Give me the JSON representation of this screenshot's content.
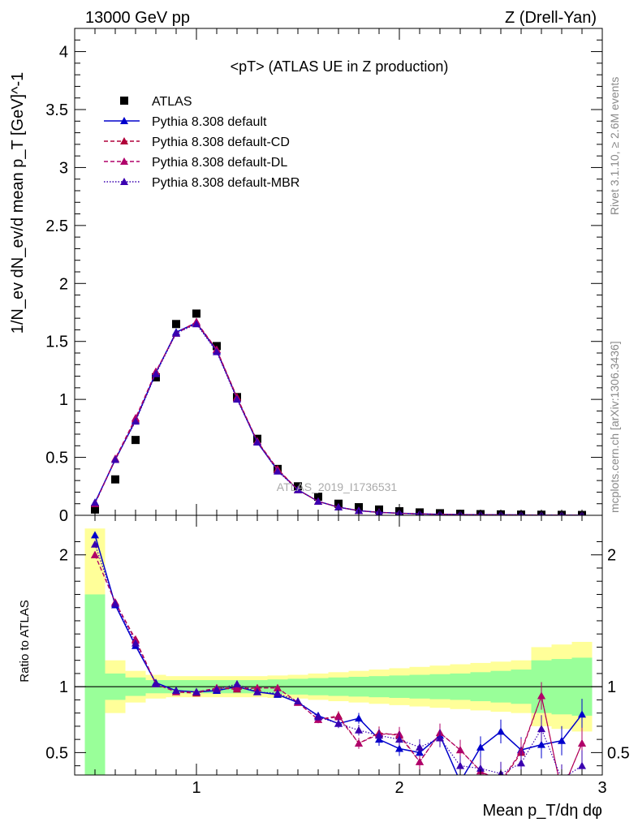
{
  "header": {
    "left": "13000 GeV pp",
    "right": "Z (Drell-Yan)"
  },
  "side_labels": {
    "rivet": "Rivet 3.1.10, ≥ 2.6M events",
    "mcplots": "mcplots.cern.ch [arXiv:1306.3436]"
  },
  "chart_data": [
    {
      "type": "line",
      "panel": "main",
      "title": "<pT> (ATLAS UE in Z production)",
      "watermark": "ATLAS_2019_I1736531",
      "ylabel": "1/N_ev dN_ev/d mean p_T [GeV]^-1",
      "xlim": [
        0.4,
        3.0
      ],
      "ylim": [
        0,
        4.2
      ],
      "grid": false,
      "legend_position": "top-left",
      "x": [
        0.5,
        0.6,
        0.7,
        0.8,
        0.9,
        1.0,
        1.1,
        1.2,
        1.3,
        1.4,
        1.5,
        1.6,
        1.7,
        1.8,
        1.9,
        2.0,
        2.1,
        2.2,
        2.3,
        2.4,
        2.5,
        2.6,
        2.7,
        2.8,
        2.9
      ],
      "yticks": [
        "0",
        "0.5",
        "1",
        "1.5",
        "2",
        "2.5",
        "3",
        "3.5",
        "4"
      ],
      "series": [
        {
          "name": "ATLAS",
          "color": "#000000",
          "marker": "square",
          "line": "none",
          "values": [
            0.05,
            0.31,
            0.65,
            1.19,
            1.65,
            1.74,
            1.46,
            1.02,
            0.66,
            0.4,
            0.25,
            0.16,
            0.1,
            0.07,
            0.05,
            0.035,
            0.025,
            0.018,
            0.013,
            0.01,
            0.008,
            0.006,
            0.005,
            0.004,
            0.003
          ]
        },
        {
          "name": "Pythia 8.308 default",
          "color": "#0000cc",
          "marker": "triangle",
          "line": "solid",
          "values": [
            0.11,
            0.48,
            0.82,
            1.23,
            1.58,
            1.66,
            1.42,
            1.01,
            0.63,
            0.39,
            0.22,
            0.12,
            0.07,
            0.04,
            0.025,
            0.018,
            0.012,
            0.009,
            0.006,
            0.005,
            0.004,
            0.003,
            0.002,
            0.002,
            0.001
          ]
        },
        {
          "name": "Pythia 8.308 default-CD",
          "color": "#b0003a",
          "marker": "triangle",
          "line": "dashed",
          "values": [
            0.1,
            0.48,
            0.83,
            1.24,
            1.57,
            1.66,
            1.43,
            1.02,
            0.64,
            0.4,
            0.22,
            0.12,
            0.07,
            0.04,
            0.026,
            0.018,
            0.012,
            0.009,
            0.006,
            0.005,
            0.004,
            0.003,
            0.002,
            0.002,
            0.001
          ]
        },
        {
          "name": "Pythia 8.308 default-DL",
          "color": "#b0006a",
          "marker": "triangle",
          "line": "dashed",
          "values": [
            0.1,
            0.49,
            0.84,
            1.24,
            1.57,
            1.67,
            1.43,
            1.01,
            0.64,
            0.39,
            0.22,
            0.12,
            0.07,
            0.04,
            0.025,
            0.018,
            0.012,
            0.009,
            0.006,
            0.005,
            0.004,
            0.003,
            0.002,
            0.002,
            0.001
          ]
        },
        {
          "name": "Pythia 8.308 default-MBR",
          "color": "#3a00b0",
          "marker": "triangle",
          "line": "dotted",
          "values": [
            0.11,
            0.48,
            0.81,
            1.22,
            1.57,
            1.65,
            1.41,
            1.0,
            0.63,
            0.38,
            0.22,
            0.12,
            0.07,
            0.04,
            0.025,
            0.018,
            0.012,
            0.009,
            0.006,
            0.005,
            0.004,
            0.003,
            0.002,
            0.002,
            0.001
          ]
        }
      ]
    },
    {
      "type": "line",
      "panel": "ratio",
      "ylabel": "Ratio to ATLAS",
      "xlabel": "Mean p_T/dη dφ",
      "xlim": [
        0.4,
        3.0
      ],
      "ylim": [
        0.33,
        2.3
      ],
      "reference_line": 1,
      "yticks": [
        "0.5",
        "1",
        "2"
      ],
      "xticks": [
        "1",
        "2",
        "3"
      ],
      "bands": {
        "color_inner": "#99ff99",
        "color_outer": "#ffff99",
        "edges": [
          0.45,
          0.55,
          0.65,
          0.75,
          0.85,
          0.95,
          1.05,
          1.15,
          1.25,
          1.35,
          1.45,
          1.55,
          1.65,
          1.75,
          1.85,
          1.95,
          2.05,
          2.15,
          2.25,
          2.35,
          2.45,
          2.55,
          2.65,
          2.75,
          2.85,
          2.95
        ],
        "inner": [
          0.7,
          0.1,
          0.07,
          0.05,
          0.05,
          0.05,
          0.05,
          0.05,
          0.05,
          0.055,
          0.06,
          0.065,
          0.07,
          0.075,
          0.08,
          0.085,
          0.09,
          0.095,
          0.1,
          0.11,
          0.12,
          0.13,
          0.2,
          0.21,
          0.22
        ],
        "outer": [
          1.2,
          0.2,
          0.12,
          0.09,
          0.08,
          0.08,
          0.08,
          0.08,
          0.08,
          0.085,
          0.09,
          0.1,
          0.11,
          0.12,
          0.13,
          0.14,
          0.15,
          0.16,
          0.17,
          0.18,
          0.19,
          0.2,
          0.3,
          0.32,
          0.34
        ]
      },
      "x": [
        0.5,
        0.6,
        0.7,
        0.8,
        0.9,
        1.0,
        1.1,
        1.2,
        1.3,
        1.4,
        1.5,
        1.6,
        1.7,
        1.8,
        1.9,
        2.0,
        2.1,
        2.2,
        2.3,
        2.4,
        2.5,
        2.6,
        2.7,
        2.8,
        2.9
      ],
      "series": [
        {
          "name": "Pythia 8.308 default",
          "color": "#0000cc",
          "line": "solid",
          "values": [
            2.15,
            1.62,
            1.31,
            1.03,
            0.97,
            0.96,
            0.97,
            1.0,
            0.96,
            0.94,
            0.88,
            0.78,
            0.72,
            0.76,
            0.6,
            0.53,
            0.5,
            0.63,
            0.28,
            0.54,
            0.66,
            0.52,
            0.56,
            0.59,
            0.79
          ]
        },
        {
          "name": "Pythia 8.308 default-CD",
          "color": "#b0003a",
          "line": "dashed",
          "values": [
            2.0,
            1.64,
            1.36,
            1.02,
            0.96,
            0.95,
            0.99,
            0.98,
            0.99,
            0.99,
            0.88,
            0.75,
            0.78,
            0.57,
            0.65,
            0.63,
            0.43,
            0.65,
            0.52,
            0.36,
            0.27,
            0.5,
            0.93,
            0.2,
            0.57
          ]
        },
        {
          "name": "Pythia 8.308 default-DL",
          "color": "#b0006a",
          "line": "dashed",
          "values": [
            2.0,
            1.64,
            1.35,
            1.02,
            0.96,
            0.96,
            0.99,
            0.99,
            0.99,
            0.99,
            0.88,
            0.75,
            0.77,
            0.57,
            0.64,
            0.64,
            0.43,
            0.65,
            0.52,
            0.36,
            0.28,
            0.51,
            0.93,
            0.2,
            0.57
          ]
        },
        {
          "name": "Pythia 8.308 default-MBR",
          "color": "#3a00b0",
          "line": "dotted",
          "values": [
            2.08,
            1.63,
            1.33,
            1.02,
            0.97,
            0.96,
            0.98,
            1.02,
            0.96,
            0.95,
            0.89,
            0.77,
            0.72,
            0.67,
            0.63,
            0.6,
            0.54,
            0.61,
            0.4,
            0.38,
            0.34,
            0.42,
            0.68,
            0.3,
            0.4
          ]
        }
      ]
    }
  ]
}
